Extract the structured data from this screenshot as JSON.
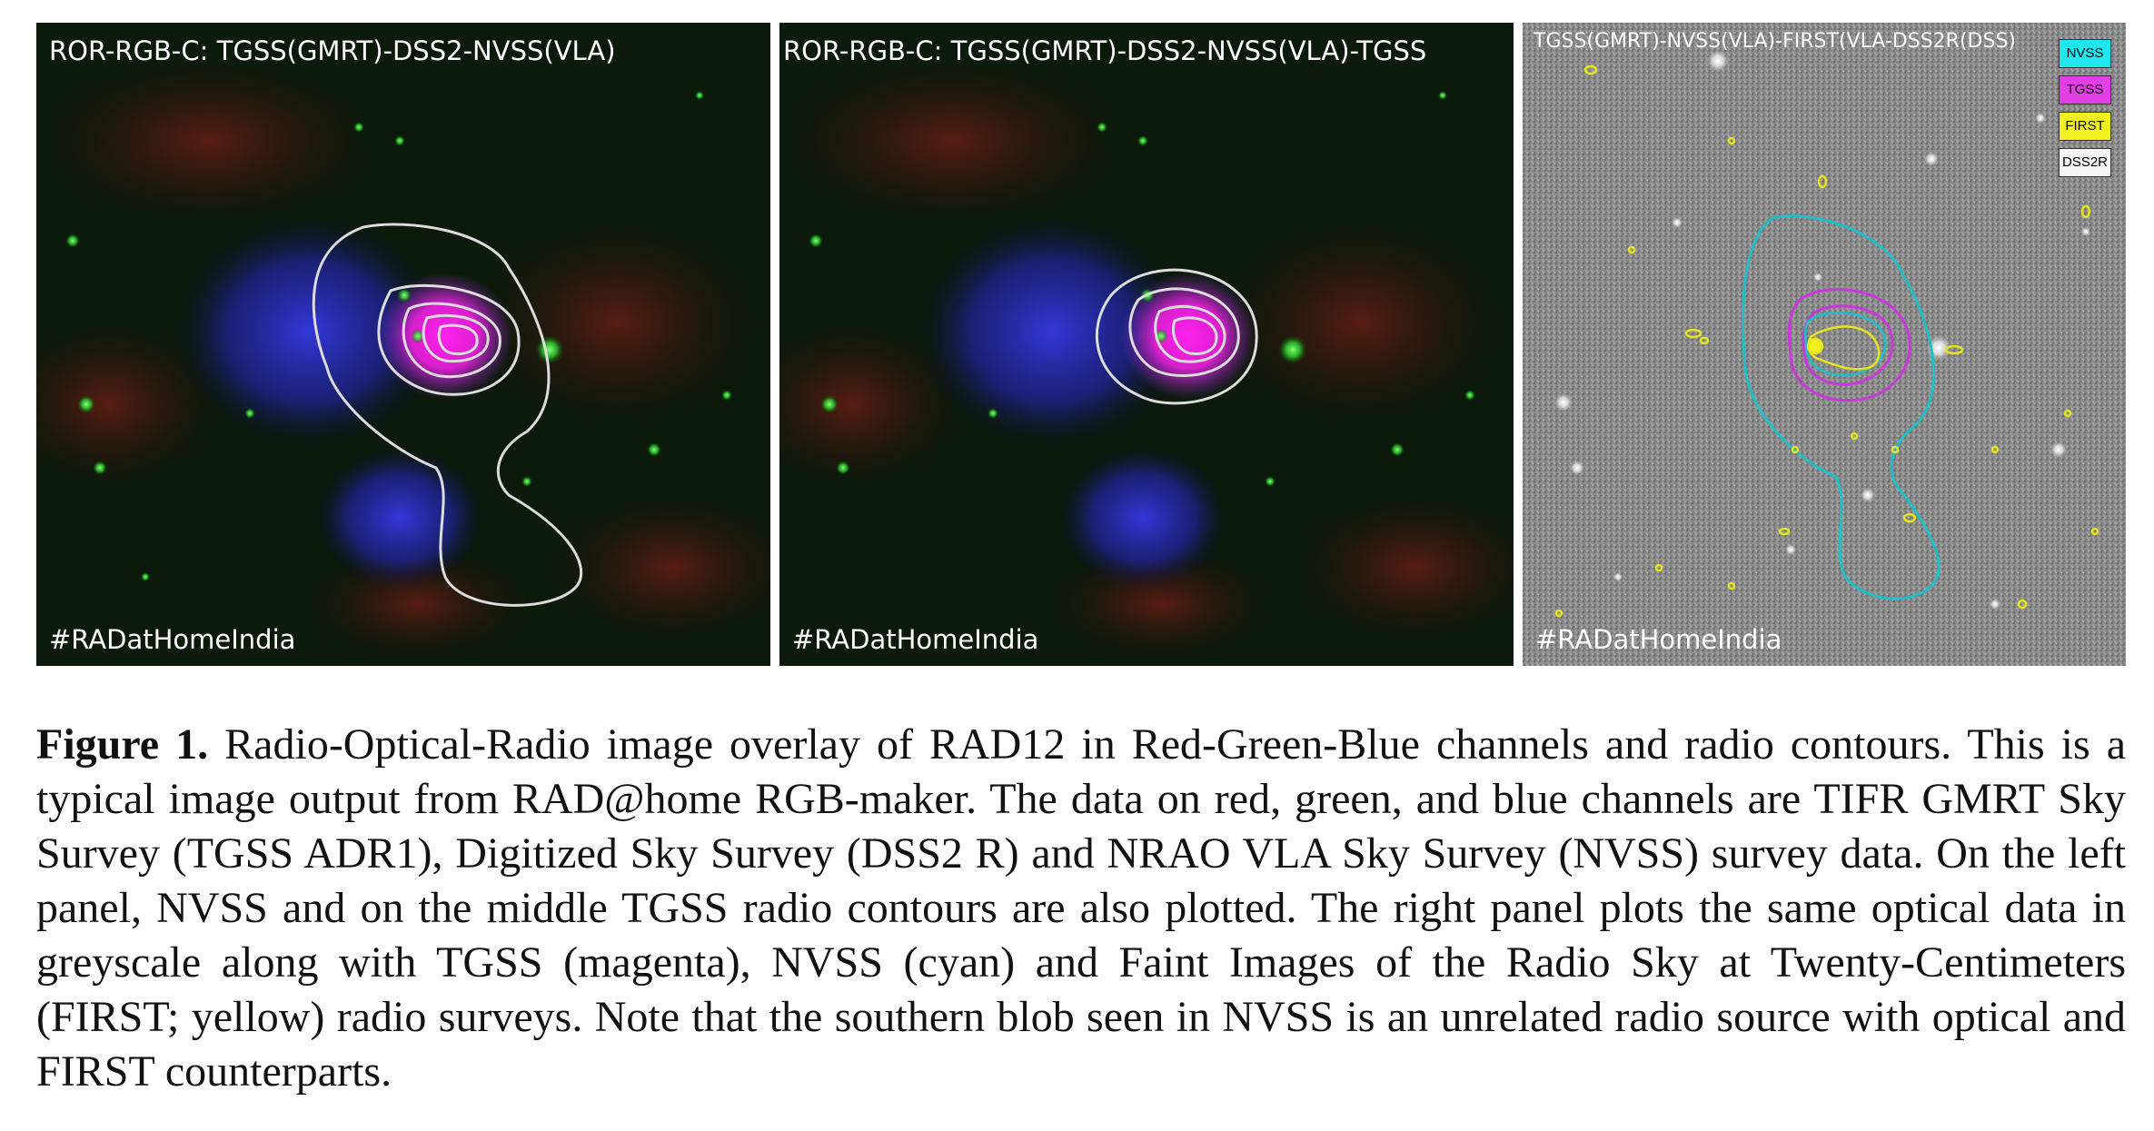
{
  "panels": {
    "left": {
      "title": "ROR-RGB-C: TGSS(GMRT)-DSS2-NVSS(VLA)",
      "hashtag": "#RADatHomeIndia"
    },
    "middle": {
      "title": "ROR-RGB-C: TGSS(GMRT)-DSS2-NVSS(VLA)-TGSS",
      "hashtag": "#RADatHomeIndia"
    },
    "right": {
      "title": "TGSS(GMRT)-NVSS(VLA)-FIRST(VLA-DSS2R(DSS)",
      "hashtag": "#RADatHomeIndia",
      "legend": [
        "NVSS",
        "TGSS",
        "FIRST",
        "DSS2R"
      ]
    }
  },
  "colors": {
    "nvss": "#1fe6ef",
    "tgss": "#e23fe5",
    "first": "#f2f021",
    "dss2r": "#f4f4f4"
  },
  "caption": {
    "label": "Figure 1.",
    "text": "Radio-Optical-Radio image overlay of RAD12 in Red-Green-Blue channels and radio contours. This is a typical image output from RAD@home RGB-maker. The data on red, green, and blue channels are TIFR GMRT Sky Survey (TGSS ADR1), Digitized Sky Survey (DSS2 R) and NRAO VLA Sky Survey (NVSS) survey data. On the left panel, NVSS and on the middle TGSS radio contours are also plotted. The right panel plots the same optical data in greyscale along with TGSS (magenta), NVSS (cyan) and Faint Images of the Radio Sky at Twenty-Centimeters (FIRST; yellow) radio surveys. Note that the southern blob seen in NVSS is an unrelated radio source with optical and FIRST counterparts."
  }
}
